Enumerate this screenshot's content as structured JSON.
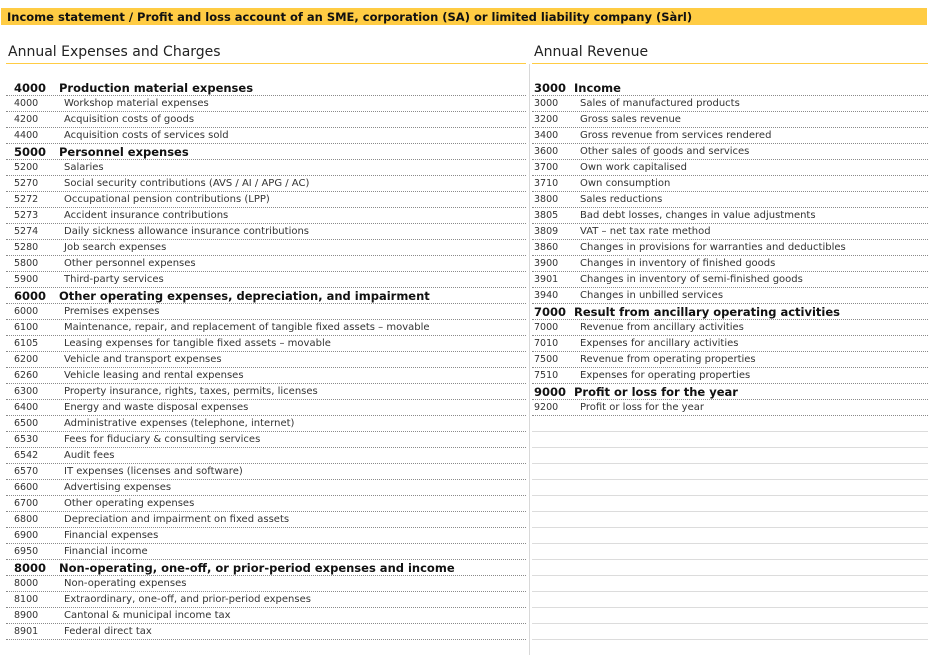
{
  "banner": "Income statement / Profit and loss account of an SME, corporation (SA) or limited liability company (Sàrl)",
  "colors": {
    "accent": "#ffcc44"
  },
  "expenses": {
    "title": "Annual Expenses and Charges",
    "rows": [
      {
        "code": "4000",
        "label": "Production material expenses",
        "heading": true
      },
      {
        "code": "4000",
        "label": "Workshop material expenses"
      },
      {
        "code": "4200",
        "label": "Acquisition costs of goods"
      },
      {
        "code": "4400",
        "label": "Acquisition costs of services sold"
      },
      {
        "code": "5000",
        "label": "Personnel expenses",
        "heading": true
      },
      {
        "code": "5200",
        "label": "Salaries"
      },
      {
        "code": "5270",
        "label": "Social security contributions (AVS / AI / APG / AC)"
      },
      {
        "code": "5272",
        "label": "Occupational pension contributions (LPP)"
      },
      {
        "code": "5273",
        "label": "Accident insurance contributions"
      },
      {
        "code": "5274",
        "label": "Daily sickness allowance insurance contributions"
      },
      {
        "code": "5280",
        "label": "Job search expenses"
      },
      {
        "code": "5800",
        "label": "Other personnel expenses"
      },
      {
        "code": "5900",
        "label": "Third-party services"
      },
      {
        "code": "6000",
        "label": "Other operating expenses, depreciation, and impairment",
        "heading": true
      },
      {
        "code": "6000",
        "label": "Premises expenses"
      },
      {
        "code": "6100",
        "label": "Maintenance, repair, and replacement of tangible fixed assets – movable"
      },
      {
        "code": "6105",
        "label": "Leasing expenses for tangible fixed assets – movable"
      },
      {
        "code": "6200",
        "label": "Vehicle and transport expenses"
      },
      {
        "code": "6260",
        "label": "Vehicle leasing and rental expenses"
      },
      {
        "code": "6300",
        "label": "Property insurance, rights, taxes, permits, licenses"
      },
      {
        "code": "6400",
        "label": "Energy and waste disposal expenses"
      },
      {
        "code": "6500",
        "label": "Administrative expenses (telephone, internet)"
      },
      {
        "code": "6530",
        "label": "Fees for fiduciary & consulting services"
      },
      {
        "code": "6542",
        "label": "Audit fees"
      },
      {
        "code": "6570",
        "label": "IT expenses (licenses and software)"
      },
      {
        "code": "6600",
        "label": "Advertising expenses"
      },
      {
        "code": "6700",
        "label": "Other operating expenses"
      },
      {
        "code": "6800",
        "label": "Depreciation and impairment on fixed assets"
      },
      {
        "code": "6900",
        "label": "Financial expenses"
      },
      {
        "code": "6950",
        "label": "Financial income"
      },
      {
        "code": "8000",
        "label": "Non-operating, one-off, or prior-period expenses and income",
        "heading": true
      },
      {
        "code": "8000",
        "label": "Non-operating expenses"
      },
      {
        "code": "8100",
        "label": "Extraordinary, one-off, and prior-period expenses"
      },
      {
        "code": "8900",
        "label": "Cantonal & municipal income tax"
      },
      {
        "code": "8901",
        "label": "Federal direct tax"
      }
    ]
  },
  "revenue": {
    "title": "Annual Revenue",
    "rows": [
      {
        "code": "3000",
        "label": "Income",
        "heading": true
      },
      {
        "code": "3000",
        "label": "Sales of manufactured products"
      },
      {
        "code": "3200",
        "label": "Gross sales revenue"
      },
      {
        "code": "3400",
        "label": "Gross revenue from services rendered"
      },
      {
        "code": "3600",
        "label": "Other sales of goods and services"
      },
      {
        "code": "3700",
        "label": "Own work capitalised"
      },
      {
        "code": "3710",
        "label": "Own consumption"
      },
      {
        "code": "3800",
        "label": "Sales reductions"
      },
      {
        "code": "3805",
        "label": "Bad debt losses, changes in value adjustments"
      },
      {
        "code": "3809",
        "label": "VAT – net tax rate method"
      },
      {
        "code": "3860",
        "label": "Changes in provisions for warranties and deductibles"
      },
      {
        "code": "3900",
        "label": "Changes in inventory of finished goods"
      },
      {
        "code": "3901",
        "label": "Changes in inventory of semi-finished goods"
      },
      {
        "code": "3940",
        "label": "Changes in unbilled services"
      },
      {
        "code": "7000",
        "label": "Result from ancillary operating activities",
        "heading": true
      },
      {
        "code": "7000",
        "label": "Revenue from ancillary activities"
      },
      {
        "code": "7010",
        "label": "Expenses for ancillary activities"
      },
      {
        "code": "7500",
        "label": "Revenue from operating properties"
      },
      {
        "code": "7510",
        "label": "Expenses for operating properties"
      },
      {
        "code": "9000",
        "label": "Profit or loss for the year",
        "heading": true
      },
      {
        "code": "9200",
        "label": "Profit or loss for the year"
      }
    ]
  }
}
